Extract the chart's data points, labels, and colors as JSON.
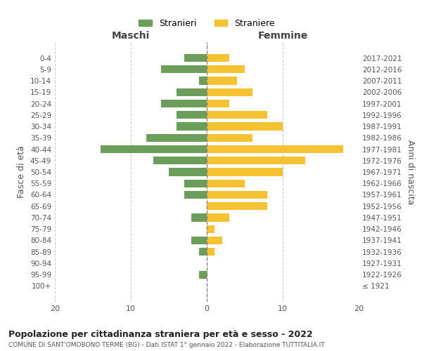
{
  "age_groups": [
    "100+",
    "95-99",
    "90-94",
    "85-89",
    "80-84",
    "75-79",
    "70-74",
    "65-69",
    "60-64",
    "55-59",
    "50-54",
    "45-49",
    "40-44",
    "35-39",
    "30-34",
    "25-29",
    "20-24",
    "15-19",
    "10-14",
    "5-9",
    "0-4"
  ],
  "birth_years": [
    "≤ 1921",
    "1922-1926",
    "1927-1931",
    "1932-1936",
    "1937-1941",
    "1942-1946",
    "1947-1951",
    "1952-1956",
    "1957-1961",
    "1962-1966",
    "1967-1971",
    "1972-1976",
    "1977-1981",
    "1982-1986",
    "1987-1991",
    "1992-1996",
    "1997-2001",
    "2002-2006",
    "2007-2011",
    "2012-2016",
    "2017-2021"
  ],
  "maschi": [
    0,
    1,
    0,
    1,
    2,
    0,
    2,
    0,
    3,
    3,
    5,
    7,
    14,
    8,
    4,
    4,
    6,
    4,
    1,
    6,
    3
  ],
  "femmine": [
    0,
    0,
    0,
    1,
    2,
    1,
    3,
    8,
    8,
    5,
    10,
    13,
    18,
    6,
    10,
    8,
    3,
    6,
    4,
    5,
    3
  ],
  "male_color": "#6a9e5a",
  "female_color": "#f5c232",
  "title": "Popolazione per cittadinanza straniera per età e sesso - 2022",
  "subtitle": "COMUNE DI SANT'OMOBONO TERME (BG) - Dati ISTAT 1° gennaio 2022 - Elaborazione TUTTITALIA.IT",
  "xlabel_left": "Maschi",
  "xlabel_right": "Femmine",
  "ylabel_left": "Fasce di età",
  "ylabel_right": "Anni di nascita",
  "legend_male": "Stranieri",
  "legend_female": "Straniere",
  "xlim": 20,
  "background_color": "#ffffff",
  "grid_color": "#cccccc"
}
